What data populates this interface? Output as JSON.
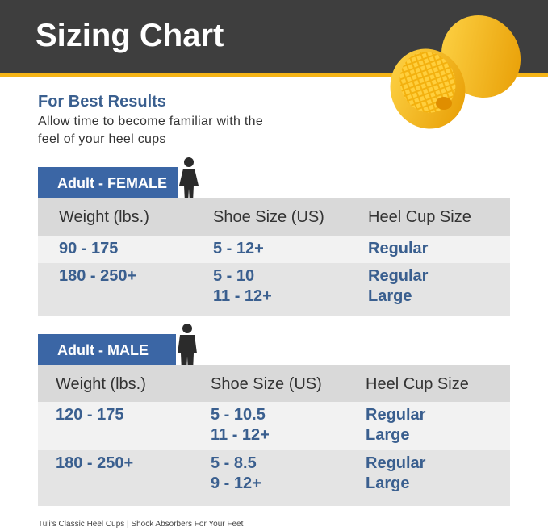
{
  "header": {
    "title": "Sizing Chart"
  },
  "intro": {
    "heading": "For Best Results",
    "lines": [
      "Allow time to become familiar with the",
      "feel of your heel cups"
    ]
  },
  "tables": [
    {
      "label": "Adult - FEMALE",
      "columns": [
        "Weight (lbs.)",
        "Shoe Size (US)",
        "Heel Cup Size"
      ],
      "rows": [
        [
          [
            "90 - 175"
          ],
          [
            "5 - 12+"
          ],
          [
            "Regular"
          ]
        ],
        [
          [
            "180 - 250+"
          ],
          [
            "5 - 10",
            "11 - 12+"
          ],
          [
            "Regular",
            "Large"
          ]
        ]
      ]
    },
    {
      "label": "Adult - MALE",
      "columns": [
        "Weight (lbs.)",
        "Shoe Size (US)",
        "Heel Cup Size"
      ],
      "rows": [
        [
          [
            "120 - 175"
          ],
          [
            "5 - 10.5",
            "11 - 12+"
          ],
          [
            "Regular",
            "Large"
          ]
        ],
        [
          [
            "180 - 250+"
          ],
          [
            "5 - 8.5",
            "9 - 12+"
          ],
          [
            "Regular",
            "Large"
          ]
        ]
      ]
    }
  ],
  "footer": "Tuli’s Classic Heel Cups | Shock Absorbers For Your Feet"
}
